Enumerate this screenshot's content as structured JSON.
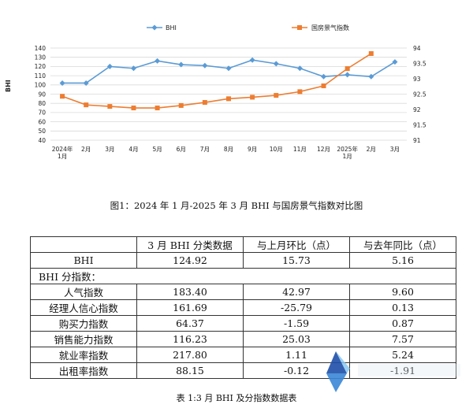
{
  "chart_data": {
    "type": "line",
    "categories": [
      "2024年\n1月",
      "2月",
      "3月",
      "4月",
      "5月",
      "6月",
      "7月",
      "8月",
      "9月",
      "10月",
      "11月",
      "12月",
      "2025年\n1月",
      "2月",
      "3月"
    ],
    "series": [
      {
        "name": "BHI",
        "axis": "left",
        "color": "#5b9bd5",
        "marker": "diamond",
        "values": [
          102,
          102,
          120,
          118,
          126,
          122,
          121,
          118,
          127,
          123,
          118,
          109,
          111,
          109,
          124.92
        ]
      },
      {
        "name": "国房景气指数",
        "axis": "right",
        "color": "#ed7d31",
        "marker": "square",
        "values": [
          null,
          null,
          null,
          null,
          null,
          null,
          null,
          null,
          null,
          null,
          null,
          null,
          null,
          null,
          null
        ],
        "right_values": [
          92.43,
          92.15,
          92.1,
          92.05,
          92.05,
          92.13,
          92.23,
          92.35,
          92.4,
          92.46,
          92.58,
          92.77,
          93.33,
          93.82,
          null
        ]
      }
    ],
    "ylabel": "BHI",
    "ylim": [
      40,
      140
    ],
    "yticks": [
      40,
      50,
      60,
      70,
      80,
      90,
      100,
      110,
      120,
      130,
      140
    ],
    "y2lim": [
      91,
      94
    ],
    "y2ticks": [
      "91",
      "91.5",
      "92",
      "92.5",
      "93",
      "93.5",
      "94"
    ],
    "grid": true,
    "legend": "top"
  },
  "figure_caption": "图1：2024 年 1 月-2025 年 3 月 BHI 与国房景气指数对比图",
  "table": {
    "headers": [
      "",
      "3 月 BHI 分类数据",
      "与上月环比（点）",
      "与去年同比（点）"
    ],
    "rows": [
      {
        "name": "BHI",
        "values": [
          "124.92",
          "15.73",
          "5.16"
        ]
      },
      {
        "section": "BHI 分指数："
      },
      {
        "name": "人气指数",
        "values": [
          "183.40",
          "42.97",
          "9.60"
        ]
      },
      {
        "name": "经理人信心指数",
        "values": [
          "161.69",
          "-25.79",
          "0.13"
        ]
      },
      {
        "name": "购买力指数",
        "values": [
          "64.37",
          "-1.59",
          "0.87"
        ]
      },
      {
        "name": "销售能力指数",
        "values": [
          "116.23",
          "25.03",
          "7.57"
        ]
      },
      {
        "name": "就业率指数",
        "values": [
          "217.80",
          "1.11",
          "5.24"
        ]
      },
      {
        "name": "出租率指数",
        "values": [
          "88.15",
          "-0.12",
          "-1.91"
        ]
      }
    ],
    "caption": "表 1:3 月 BHI 及分指数数据表"
  },
  "watermark": {
    "colors": [
      "#1f4fa8",
      "#3a86d6",
      "#7fc4f2"
    ]
  }
}
